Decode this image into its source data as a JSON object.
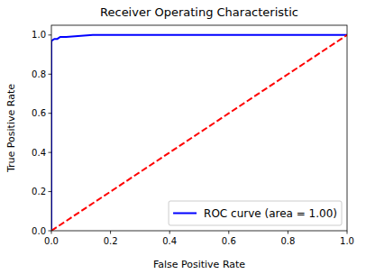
{
  "chart_data": {
    "type": "line",
    "title": "Receiver Operating Characteristic",
    "x_label": "False Positive Rate",
    "y_label": "True Positive Rate",
    "series": [
      {
        "name": "ROC curve (area = 1.00)",
        "color": "#0000ff",
        "line_style": "solid",
        "x": [
          0.0,
          0.0,
          0.01,
          0.02,
          0.03,
          0.05,
          0.14,
          1.0
        ],
        "values": [
          0.0,
          0.97,
          0.98,
          0.98,
          0.99,
          0.99,
          1.0,
          1.0
        ]
      },
      {
        "color": "#ff0000",
        "line_style": "dashed",
        "x": [
          0.0,
          1.0
        ],
        "values": [
          0.0,
          1.0
        ]
      }
    ],
    "xlim": [
      0,
      1
    ],
    "ylim": [
      0,
      1.05
    ],
    "xticks": [
      {
        "value": 0,
        "label": "0.0"
      },
      0.2,
      0.4,
      0.6,
      0.8,
      {
        "value": 1,
        "label": "1.0"
      }
    ],
    "yticks": [
      {
        "value": 0,
        "label": "0.0"
      },
      0.2,
      0.4,
      0.6,
      0.8,
      {
        "value": 1,
        "label": "1.0"
      }
    ],
    "legend": "lower right",
    "grid": false
  }
}
